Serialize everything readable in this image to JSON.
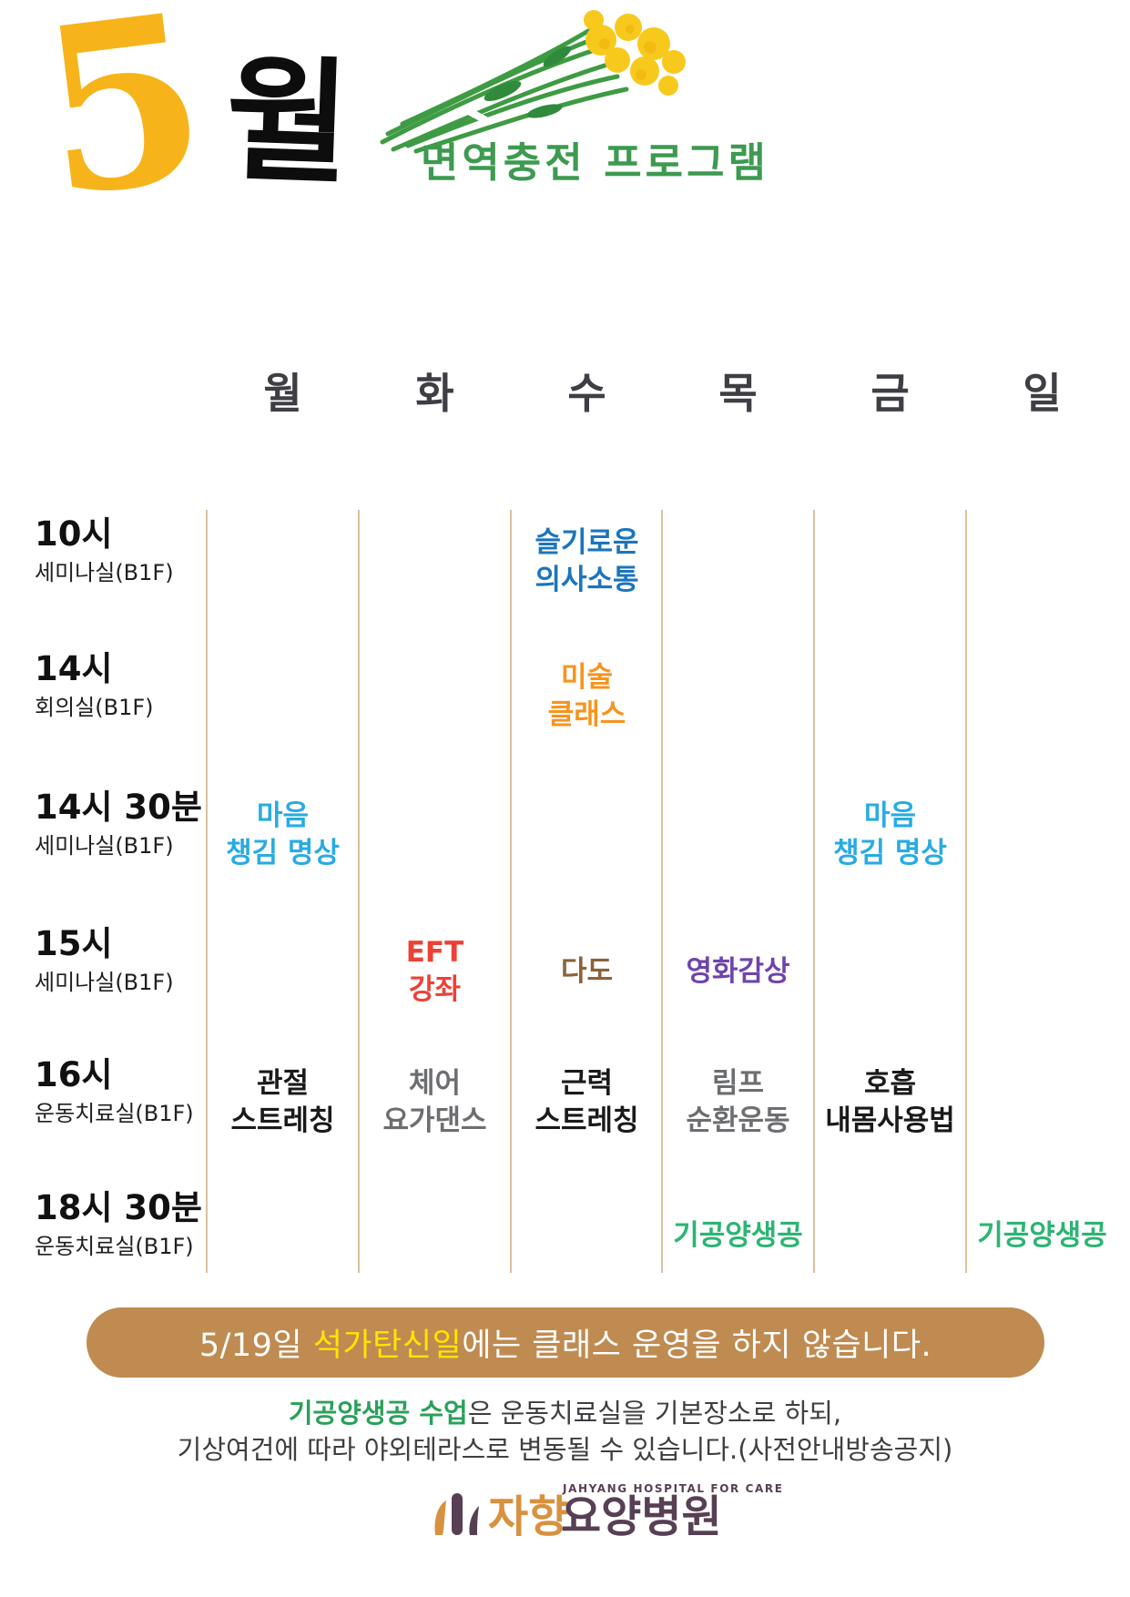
{
  "header": {
    "month_number": "5",
    "month_suffix": "월",
    "title": "면역충전 프로그램",
    "number_color": "#F6B41A",
    "title_color": "#3D9A50"
  },
  "table": {
    "day_headers": [
      "월",
      "화",
      "수",
      "목",
      "금",
      "일"
    ],
    "rows": [
      {
        "time": "10시",
        "room": "세미나실(B1F)"
      },
      {
        "time": "14시",
        "room": "회의실(B1F)"
      },
      {
        "time": "14시 30분",
        "room": "세미나실(B1F)"
      },
      {
        "time": "15시",
        "room": "세미나실(B1F)"
      },
      {
        "time": "16시",
        "room": "운동치료실(B1F)"
      },
      {
        "time": "18시 30분",
        "room": "운동치료실(B1F)"
      }
    ],
    "cells": [
      {
        "row": 0,
        "day": "수",
        "lines": [
          "슬기로운",
          "의사소통"
        ],
        "color": "#1B75BC"
      },
      {
        "row": 1,
        "day": "수",
        "lines": [
          "미술",
          "클래스"
        ],
        "color": "#F7941D"
      },
      {
        "row": 2,
        "day": "월",
        "lines": [
          "마음",
          "챙김 명상"
        ],
        "color": "#29ABE2"
      },
      {
        "row": 2,
        "day": "금",
        "lines": [
          "마음",
          "챙김 명상"
        ],
        "color": "#29ABE2"
      },
      {
        "row": 3,
        "day": "화",
        "lines": [
          "EFT",
          "강좌"
        ],
        "color": "#EE4036"
      },
      {
        "row": 3,
        "day": "수",
        "lines": [
          "다도"
        ],
        "color": "#8B6239"
      },
      {
        "row": 3,
        "day": "목",
        "lines": [
          "영화감상"
        ],
        "color": "#6E44AD"
      },
      {
        "row": 4,
        "day": "월",
        "lines": [
          "관절",
          "스트레칭"
        ],
        "color": "#1A1A1A"
      },
      {
        "row": 4,
        "day": "화",
        "lines": [
          "체어",
          "요가댄스"
        ],
        "color": "#6D6E71"
      },
      {
        "row": 4,
        "day": "수",
        "lines": [
          "근력",
          "스트레칭"
        ],
        "color": "#1A1A1A"
      },
      {
        "row": 4,
        "day": "목",
        "lines": [
          "림프",
          "순환운동"
        ],
        "color": "#6D6E71"
      },
      {
        "row": 4,
        "day": "금",
        "lines": [
          "호흡",
          "내몸사용법"
        ],
        "color": "#1A1A1A"
      },
      {
        "row": 5,
        "day": "목",
        "lines": [
          "기공양생공"
        ],
        "color": "#2BB573"
      },
      {
        "row": 5,
        "day": "일",
        "lines": [
          "기공양생공"
        ],
        "color": "#2BB573"
      }
    ],
    "divider_color": "#DCC19E"
  },
  "notice": {
    "prefix": "5/19일 ",
    "highlight": "석가탄신일",
    "suffix": "에는 클래스 운영을 하지 않습니다.",
    "bg_color": "#BF8B51",
    "highlight_color": "#FFE500"
  },
  "footnote": {
    "line1_highlight": "기공양생공 수업",
    "line1_rest": "은 운동치료실을 기본장소로 하되,",
    "line2": "기상여건에 따라 야외테라스로 변동될 수 있습니다.(사전안내방송공지)",
    "highlight_color": "#2BA05A"
  },
  "logo": {
    "tagline": "JAHYANG HOSPITAL FOR CARE",
    "name_part1": "자향",
    "name_part2": "요양병원",
    "orange_color": "#D8913E",
    "plum_color": "#574053"
  }
}
